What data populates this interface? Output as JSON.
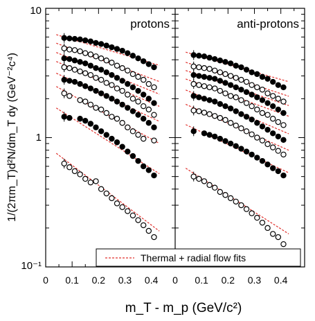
{
  "chart_data": {
    "type": "scatter",
    "ylabel": "1/(2πm_T)d²N/dm_T dy (GeV⁻²c⁴)",
    "xlabel": "m_T - m_p (GeV/c²)",
    "y_scale": "log",
    "ylim": [
      0.1,
      10
    ],
    "xlim": [
      0,
      0.49
    ],
    "y_ticks": [
      "10",
      "1",
      "10⁻¹"
    ],
    "x_ticks": [
      "0",
      "0.1",
      "0.2",
      "0.3",
      "0.4"
    ],
    "legend": {
      "label": "Thermal + radial flow fits",
      "placement": "bottom",
      "line_color": "#e0302c",
      "line_style": "dashed"
    },
    "panels": [
      {
        "title": "protons",
        "series": [
          {
            "marker": "filled",
            "x": [
              0.07,
              0.09,
              0.11,
              0.13,
              0.15,
              0.17,
              0.19,
              0.21,
              0.23,
              0.25,
              0.27,
              0.29,
              0.31,
              0.33,
              0.35,
              0.37,
              0.39,
              0.41
            ],
            "y": [
              5.9,
              5.85,
              5.8,
              5.75,
              5.65,
              5.55,
              5.4,
              5.3,
              5.15,
              5.0,
              4.85,
              4.7,
              4.5,
              4.3,
              4.1,
              3.9,
              3.7,
              3.5
            ]
          },
          {
            "marker": "open",
            "x": [
              0.07,
              0.09,
              0.11,
              0.13,
              0.15,
              0.17,
              0.19,
              0.21,
              0.23,
              0.25,
              0.27,
              0.29,
              0.31,
              0.33,
              0.35,
              0.37,
              0.39,
              0.41
            ],
            "y": [
              4.9,
              4.8,
              4.75,
              4.65,
              4.5,
              4.4,
              4.25,
              4.1,
              3.95,
              3.8,
              3.6,
              3.45,
              3.3,
              3.1,
              2.95,
              2.8,
              2.6,
              2.45
            ]
          },
          {
            "marker": "filled",
            "x": [
              0.07,
              0.09,
              0.11,
              0.13,
              0.15,
              0.17,
              0.19,
              0.21,
              0.23,
              0.25,
              0.27,
              0.29,
              0.31,
              0.33,
              0.35,
              0.37,
              0.39,
              0.41
            ],
            "y": [
              4.1,
              4.05,
              3.95,
              3.85,
              3.75,
              3.6,
              3.45,
              3.35,
              3.2,
              3.05,
              2.9,
              2.75,
              2.6,
              2.45,
              2.3,
              2.15,
              2.0,
              1.85
            ]
          },
          {
            "marker": "open",
            "x": [
              0.07,
              0.09,
              0.11,
              0.13,
              0.15,
              0.17,
              0.19,
              0.21,
              0.23,
              0.25,
              0.27,
              0.29,
              0.31,
              0.33,
              0.35,
              0.37,
              0.39,
              0.41
            ],
            "y": [
              3.5,
              3.45,
              3.35,
              3.25,
              3.15,
              3.05,
              2.9,
              2.8,
              2.65,
              2.55,
              2.4,
              2.3,
              2.15,
              2.0,
              1.9,
              1.75,
              1.65,
              1.5
            ]
          },
          {
            "marker": "filled",
            "x": [
              0.07,
              0.09,
              0.11,
              0.13,
              0.15,
              0.17,
              0.19,
              0.21,
              0.23,
              0.25,
              0.27,
              0.29,
              0.31,
              0.33,
              0.35,
              0.37,
              0.39,
              0.41
            ],
            "y": [
              2.8,
              2.75,
              2.7,
              2.6,
              2.5,
              2.4,
              2.3,
              2.2,
              2.1,
              2.0,
              1.9,
              1.8,
              1.7,
              1.6,
              1.5,
              1.4,
              1.3,
              1.2
            ]
          },
          {
            "marker": "open",
            "x": [
              0.07,
              0.09,
              0.13,
              0.15,
              0.17,
              0.19,
              0.21,
              0.23,
              0.25,
              0.27,
              0.29,
              0.31,
              0.33,
              0.35,
              0.37,
              0.41
            ],
            "y": [
              2.2,
              2.1,
              1.95,
              1.9,
              1.8,
              1.7,
              1.65,
              1.55,
              1.45,
              1.4,
              1.3,
              1.2,
              1.12,
              1.05,
              0.98,
              0.95
            ]
          },
          {
            "marker": "filled",
            "x": [
              0.07,
              0.09,
              0.13,
              0.15,
              0.17,
              0.19,
              0.21,
              0.23,
              0.25,
              0.27,
              0.29,
              0.31,
              0.33,
              0.35,
              0.37,
              0.39,
              0.41
            ],
            "y": [
              1.45,
              1.42,
              1.4,
              1.35,
              1.28,
              1.2,
              1.12,
              1.05,
              0.98,
              0.92,
              0.85,
              0.78,
              0.72,
              0.66,
              0.6,
              0.56,
              0.51
            ]
          },
          {
            "marker": "open",
            "x": [
              0.07,
              0.09,
              0.11,
              0.13,
              0.15,
              0.17,
              0.19,
              0.21,
              0.23,
              0.25,
              0.27,
              0.29,
              0.31,
              0.33,
              0.35,
              0.37,
              0.39,
              0.41
            ],
            "y": [
              0.63,
              0.59,
              0.55,
              0.52,
              0.48,
              0.45,
              0.46,
              0.4,
              0.37,
              0.34,
              0.31,
              0.29,
              0.27,
              0.25,
              0.23,
              0.21,
              0.19,
              0.17
            ]
          }
        ],
        "fits": [
          {
            "y0": 6.0,
            "slope": 1.4,
            "x_start": 0.04,
            "x_end": 0.43
          },
          {
            "y0": 5.1,
            "slope": 1.75,
            "x_start": 0.04,
            "x_end": 0.43
          },
          {
            "y0": 4.3,
            "slope": 1.9,
            "x_start": 0.04,
            "x_end": 0.43
          },
          {
            "y0": 3.65,
            "slope": 2.05,
            "x_start": 0.04,
            "x_end": 0.43
          },
          {
            "y0": 2.95,
            "slope": 2.2,
            "x_start": 0.04,
            "x_end": 0.43
          },
          {
            "y0": 2.3,
            "slope": 2.6,
            "x_start": 0.04,
            "x_end": 0.43
          },
          {
            "y0": 1.55,
            "slope": 3.0,
            "x_start": 0.04,
            "x_end": 0.43
          },
          {
            "y0": 0.68,
            "slope": 3.55,
            "x_start": 0.04,
            "x_end": 0.43
          }
        ]
      },
      {
        "title": "anti-protons",
        "series": [
          {
            "marker": "filled",
            "x": [
              0.07,
              0.09,
              0.11,
              0.13,
              0.15,
              0.17,
              0.19,
              0.21,
              0.23,
              0.25,
              0.27,
              0.29,
              0.31,
              0.33,
              0.35,
              0.37,
              0.39,
              0.41
            ],
            "y": [
              4.35,
              4.3,
              4.25,
              4.15,
              4.05,
              3.95,
              3.85,
              3.75,
              3.6,
              3.5,
              3.35,
              3.2,
              3.1,
              2.95,
              2.85,
              2.7,
              2.55,
              2.45
            ]
          },
          {
            "marker": "open",
            "x": [
              0.07,
              0.09,
              0.11,
              0.13,
              0.15,
              0.17,
              0.19,
              0.21,
              0.23,
              0.25,
              0.27,
              0.29,
              0.31,
              0.33,
              0.35,
              0.37,
              0.39,
              0.41
            ],
            "y": [
              3.55,
              3.5,
              3.45,
              3.4,
              3.3,
              3.2,
              3.1,
              3.0,
              2.9,
              2.8,
              2.7,
              2.55,
              2.45,
              2.35,
              2.2,
              2.1,
              2.0,
              1.9
            ]
          },
          {
            "marker": "filled",
            "x": [
              0.07,
              0.09,
              0.11,
              0.13,
              0.15,
              0.17,
              0.19,
              0.21,
              0.23,
              0.25,
              0.27,
              0.29,
              0.31,
              0.33,
              0.35,
              0.37,
              0.39,
              0.41
            ],
            "y": [
              3.05,
              3.0,
              2.95,
              2.9,
              2.85,
              2.75,
              2.65,
              2.55,
              2.45,
              2.35,
              2.25,
              2.15,
              2.05,
              1.95,
              1.85,
              1.75,
              1.65,
              1.55
            ]
          },
          {
            "marker": "open",
            "x": [
              0.07,
              0.09,
              0.11,
              0.13,
              0.15,
              0.17,
              0.19,
              0.21,
              0.23,
              0.25,
              0.27,
              0.29,
              0.31,
              0.33,
              0.35,
              0.37,
              0.39,
              0.41
            ],
            "y": [
              2.6,
              2.55,
              2.5,
              2.45,
              2.4,
              2.3,
              2.2,
              2.1,
              2.05,
              1.95,
              1.85,
              1.75,
              1.65,
              1.55,
              1.5,
              1.4,
              1.32,
              1.25
            ]
          },
          {
            "marker": "filled",
            "x": [
              0.07,
              0.09,
              0.11,
              0.13,
              0.15,
              0.17,
              0.19,
              0.21,
              0.23,
              0.25,
              0.27,
              0.29,
              0.31,
              0.33,
              0.35,
              0.37,
              0.39,
              0.41
            ],
            "y": [
              2.1,
              2.05,
              2.0,
              1.95,
              1.9,
              1.82,
              1.75,
              1.68,
              1.6,
              1.52,
              1.45,
              1.38,
              1.3,
              1.22,
              1.15,
              1.08,
              1.02,
              0.96
            ]
          },
          {
            "marker": "open",
            "x": [
              0.07,
              0.09,
              0.11,
              0.13,
              0.15,
              0.17,
              0.19,
              0.21,
              0.23,
              0.25,
              0.27,
              0.29,
              0.31,
              0.33,
              0.35,
              0.37,
              0.39,
              0.41
            ],
            "y": [
              1.62,
              1.6,
              1.56,
              1.52,
              1.47,
              1.42,
              1.37,
              1.3,
              1.24,
              1.18,
              1.12,
              1.06,
              1.0,
              0.95,
              0.89,
              0.84,
              0.79,
              0.74
            ]
          },
          {
            "marker": "filled",
            "x": [
              0.07,
              0.11,
              0.13,
              0.15,
              0.17,
              0.19,
              0.21,
              0.23,
              0.25,
              0.27,
              0.29,
              0.31,
              0.33,
              0.35,
              0.37,
              0.39,
              0.41
            ],
            "y": [
              1.12,
              1.08,
              1.05,
              1.02,
              0.98,
              0.94,
              0.9,
              0.86,
              0.82,
              0.78,
              0.74,
              0.7,
              0.66,
              0.62,
              0.58,
              0.55,
              0.51
            ]
          },
          {
            "marker": "open",
            "x": [
              0.07,
              0.09,
              0.11,
              0.13,
              0.15,
              0.17,
              0.19,
              0.21,
              0.23,
              0.25,
              0.27,
              0.29,
              0.31,
              0.33,
              0.35,
              0.37,
              0.39,
              0.41
            ],
            "y": [
              0.5,
              0.48,
              0.46,
              0.43,
              0.41,
              0.38,
              0.36,
              0.34,
              0.32,
              0.3,
              0.28,
              0.26,
              0.24,
              0.22,
              0.2,
              0.18,
              0.17,
              0.15
            ]
          }
        ],
        "fits": [
          {
            "y0": 4.4,
            "slope": 1.35,
            "x_start": 0.04,
            "x_end": 0.43
          },
          {
            "y0": 3.65,
            "slope": 1.55,
            "x_start": 0.04,
            "x_end": 0.43
          },
          {
            "y0": 3.15,
            "slope": 1.6,
            "x_start": 0.04,
            "x_end": 0.43
          },
          {
            "y0": 2.7,
            "slope": 1.7,
            "x_start": 0.04,
            "x_end": 0.43
          },
          {
            "y0": 2.2,
            "slope": 2.0,
            "x_start": 0.04,
            "x_end": 0.43
          },
          {
            "y0": 1.7,
            "slope": 2.1,
            "x_start": 0.04,
            "x_end": 0.43
          },
          {
            "y0": 1.18,
            "slope": 2.2,
            "x_start": 0.04,
            "x_end": 0.43
          },
          {
            "y0": 0.53,
            "slope": 3.0,
            "x_start": 0.04,
            "x_end": 0.43
          }
        ]
      }
    ]
  }
}
